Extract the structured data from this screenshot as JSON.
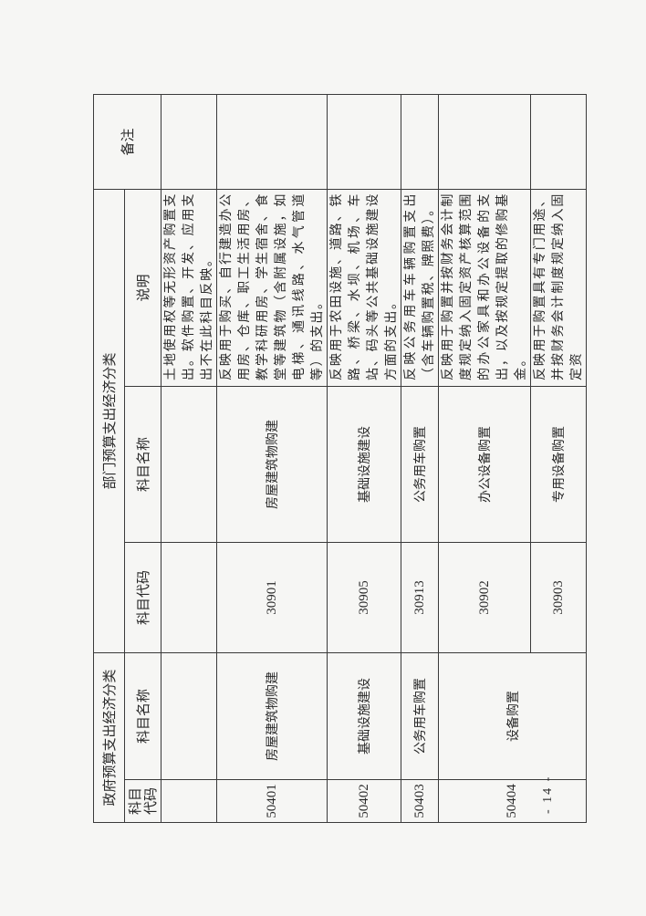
{
  "table": {
    "gov_group": "政府预算支出经济分类",
    "dept_group": "部门预算支出经济分类",
    "remarks": "备注",
    "gov_code": "科目代码",
    "gov_name": "科目名称",
    "dept_code": "科目代码",
    "dept_name": "科目名称",
    "desc": "说明",
    "rows": [
      {
        "gov_code": "",
        "gov_name": "",
        "dept_code": "",
        "dept_name": "",
        "desc": "土地使用权等无形资产购置支出。软件购置、开发、应用支出不在此科目反映。"
      },
      {
        "gov_code": "50401",
        "gov_name": "房屋建筑物购建",
        "dept_code": "30901",
        "dept_name": "房屋建筑物购建",
        "desc": "反映用于购买、自行建造办公用房、仓库、职工生活用房、教学科研用房、学生宿舍、食堂等建筑物（含附属设施，如电梯、通讯线路、水气管道等）的支出。"
      },
      {
        "gov_code": "50402",
        "gov_name": "基础设施建设",
        "dept_code": "30905",
        "dept_name": "基础设施建设",
        "desc": "反映用于农田设施、道路、铁路、桥梁、水坝、机场、车站、码头等公共基础设施建设方面的支出。"
      },
      {
        "gov_code": "50403",
        "gov_name": "公务用车购置",
        "dept_code": "30913",
        "dept_name": "公务用车购置",
        "desc": "反映公务用车车辆购置支出（含车辆购置税、牌照费）。"
      },
      {
        "gov_code": "50404",
        "gov_name": "设备购置",
        "dept_code": "30902",
        "dept_name": "办公设备购置",
        "desc": "反映用于购置并按财务会计制度规定纳入固定资产核算范围的办公家具和办公设备的支出，以及按规定提取的修购基金。"
      },
      {
        "dept_code": "30903",
        "dept_name": "专用设备购置",
        "desc": "反映用于购置具有专门用途、并按财务会计制度规定纳入固定资"
      }
    ]
  },
  "page_number": "- 14 -"
}
